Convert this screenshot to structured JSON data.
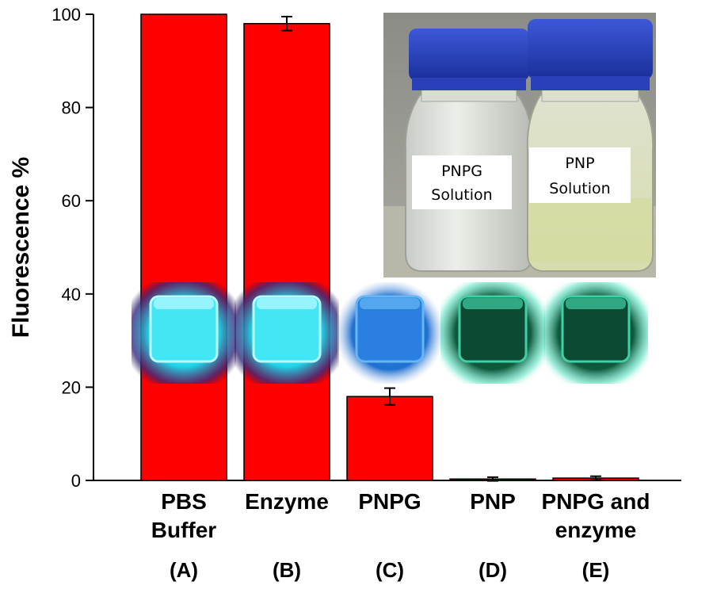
{
  "chart_data": {
    "type": "bar",
    "categories": [
      {
        "label_lines": [
          "PBS",
          "Buffer"
        ],
        "letter": "(A)"
      },
      {
        "label_lines": [
          "Enzyme"
        ],
        "letter": "(B)"
      },
      {
        "label_lines": [
          "PNPG"
        ],
        "letter": "(C)"
      },
      {
        "label_lines": [
          "PNP"
        ],
        "letter": "(D)"
      },
      {
        "label_lines": [
          "PNPG and",
          "enzyme"
        ],
        "letter": "(E)"
      }
    ],
    "values": [
      100,
      98,
      18,
      0.3,
      0.5
    ],
    "errors": [
      0,
      1.5,
      1.8,
      0.4,
      0.4
    ],
    "ylabel": "Fluorescence %",
    "ylim": [
      0,
      100
    ],
    "yticks": [
      0,
      20,
      40,
      60,
      80,
      100
    ],
    "bar_color": "#ff0000",
    "grid": false,
    "cube_glow": [
      "cyan-bright",
      "cyan-bright",
      "blue",
      "dark-green",
      "dark-green"
    ],
    "inset_photo": {
      "labels": [
        {
          "lines": [
            "PNPG",
            "Solution"
          ]
        },
        {
          "lines": [
            "PNP",
            "Solution"
          ]
        }
      ]
    }
  }
}
